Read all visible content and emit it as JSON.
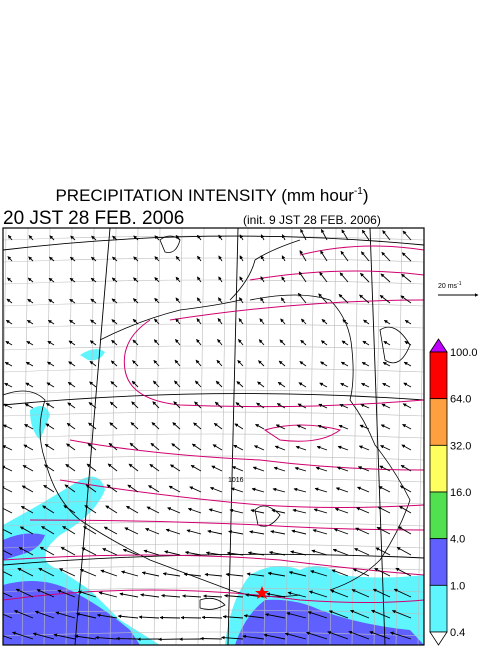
{
  "title": {
    "text": "PRECIPITATION INTENSITY (mm hour",
    "exponent": "-1",
    "close": ")"
  },
  "valid_time": "20 JST 28 FEB. 2006",
  "init_time": "(init. 9 JST 28 FEB. 2006)",
  "vector_legend": {
    "text": "20 ms",
    "exponent": "-1"
  },
  "contour_labels": [
    "1016"
  ],
  "colorbar": {
    "levels": [
      "100.0",
      "64.0",
      "32.0",
      "16.0",
      "4.0",
      "1.0",
      "0.4"
    ],
    "colors": [
      "#c000ff",
      "#ff0000",
      "#ffa040",
      "#ffff60",
      "#50e050",
      "#6060ff",
      "#5ff5ff",
      "#ffffff"
    ]
  }
}
